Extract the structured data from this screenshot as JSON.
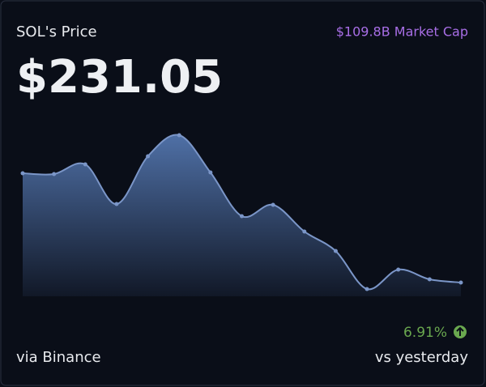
{
  "header": {
    "title": "SOL's Price",
    "market_cap": "$109.8B Market Cap",
    "price": "$231.05"
  },
  "chart_data": {
    "type": "area",
    "values": [
      152,
      151,
      163,
      114,
      173,
      199,
      153,
      99,
      113,
      80,
      56,
      9,
      33,
      21,
      17
    ],
    "ylim": [
      0,
      200
    ],
    "color": "#7b96c8"
  },
  "footer": {
    "change": "6.91%",
    "source": "via Binance",
    "comparison": "vs yesterday"
  }
}
